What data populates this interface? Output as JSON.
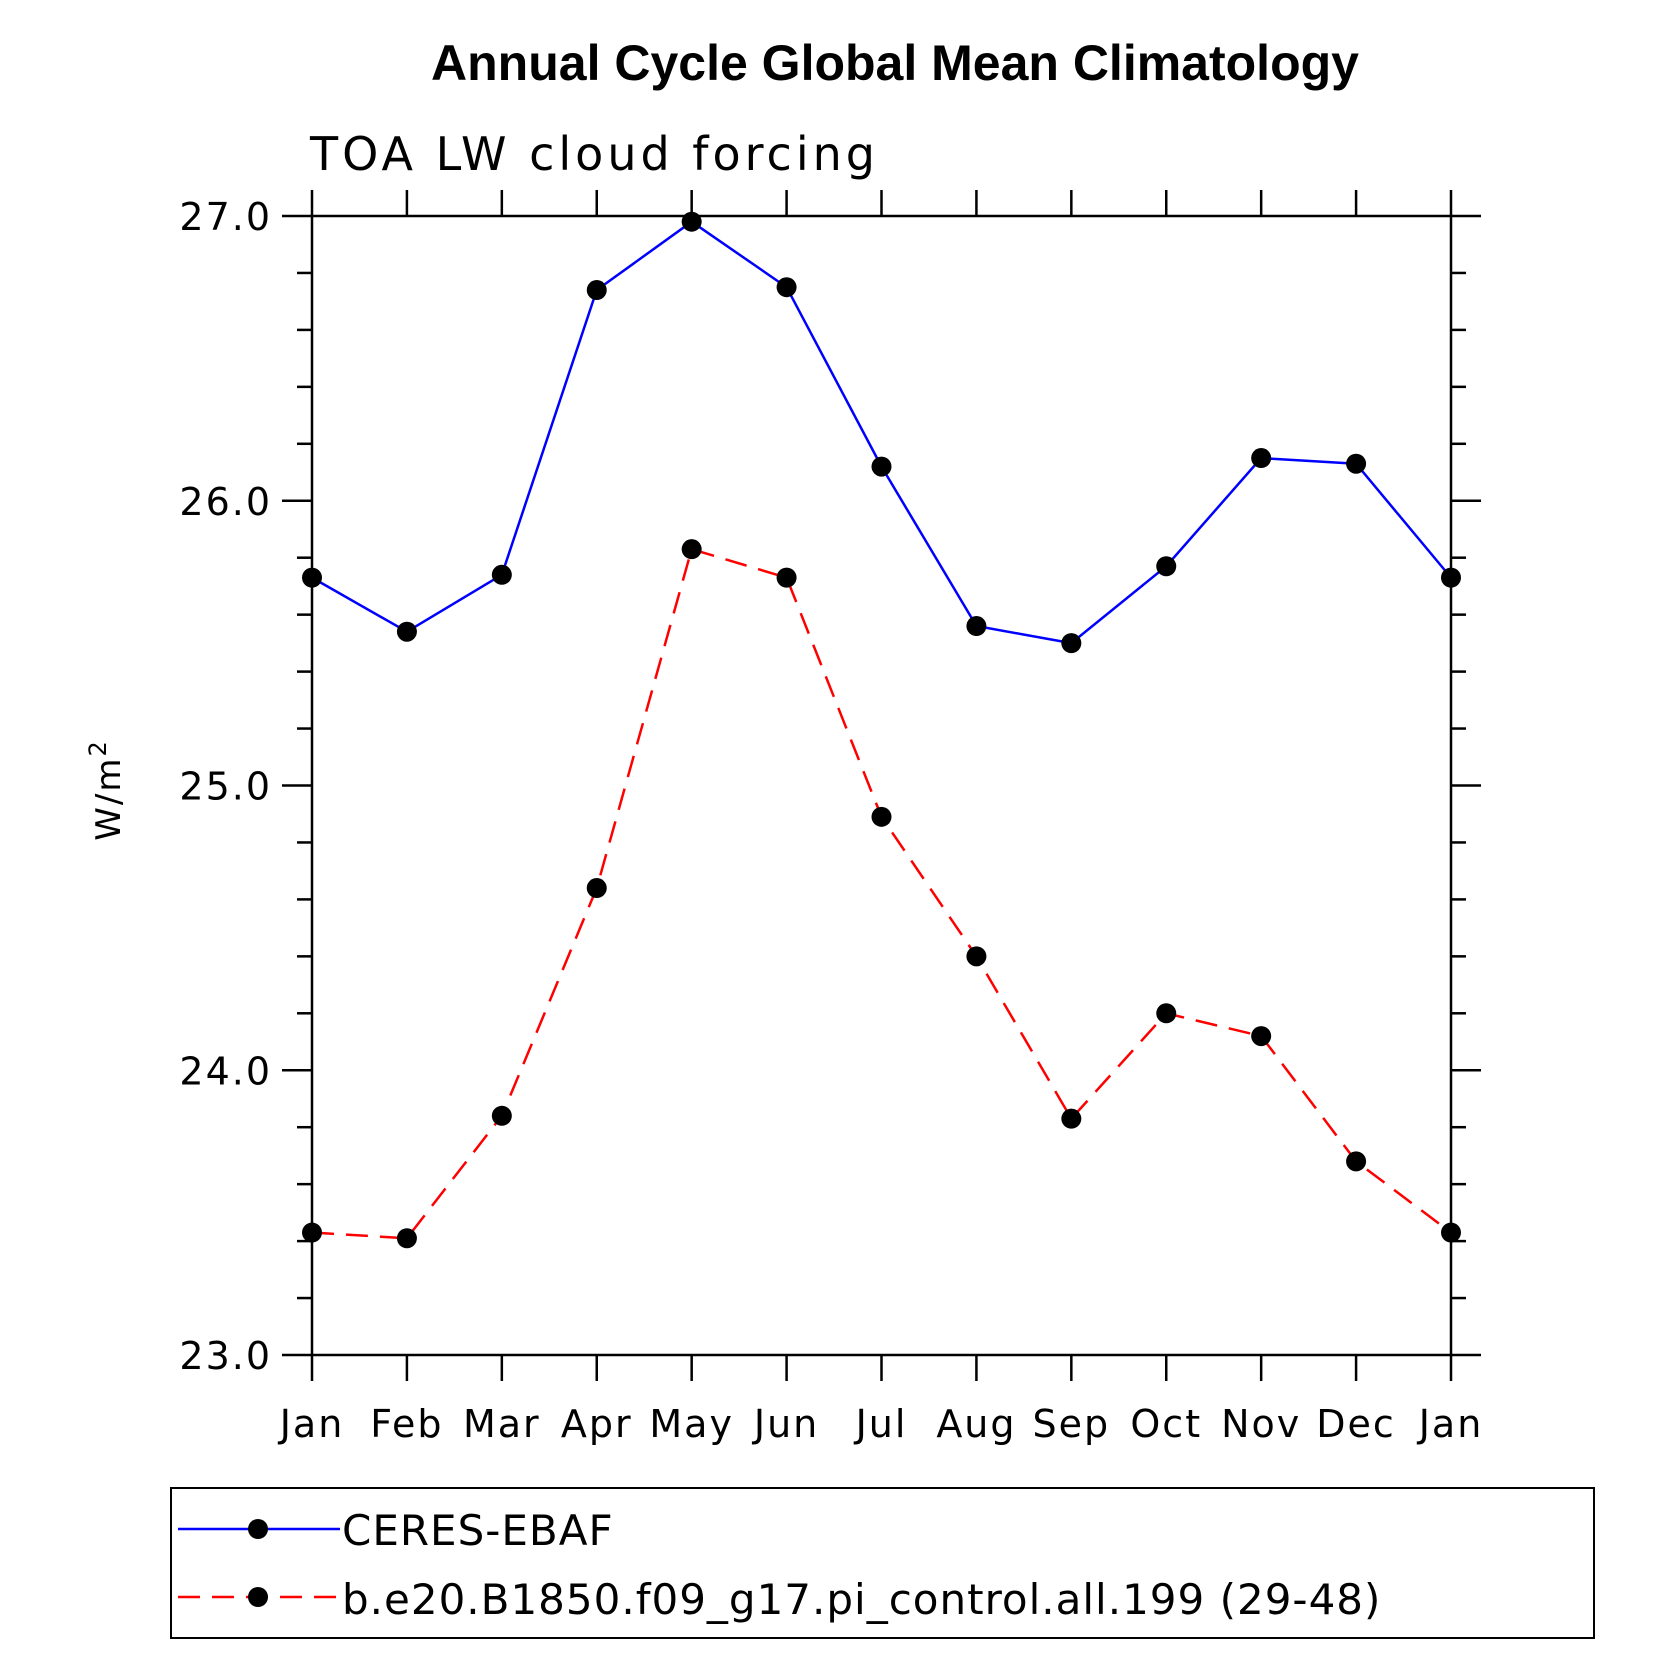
{
  "chart_data": {
    "type": "line",
    "title": "Annual Cycle Global Mean Climatology",
    "subtitle": "TOA LW cloud forcing",
    "ylabel": "W/m",
    "ylabel_superscript": "2",
    "xlabel": "",
    "categories": [
      "Jan",
      "Feb",
      "Mar",
      "Apr",
      "May",
      "Jun",
      "Jul",
      "Aug",
      "Sep",
      "Oct",
      "Nov",
      "Dec",
      "Jan"
    ],
    "ylim": [
      23.0,
      27.0
    ],
    "yticks": [
      "23.0",
      "24.0",
      "25.0",
      "26.0",
      "27.0"
    ],
    "y_minor_step": 0.2,
    "grid": false,
    "legend_position": "bottom",
    "series": [
      {
        "name": "CERES-EBAF",
        "color": "#0000ff",
        "dash": "solid",
        "values": [
          25.73,
          25.54,
          25.74,
          26.74,
          26.98,
          26.75,
          26.12,
          25.56,
          25.5,
          25.77,
          26.15,
          26.13,
          25.73
        ]
      },
      {
        "name": "b.e20.B1850.f09_g17.pi_control.all.199 (29-48)",
        "color": "#ff0000",
        "dash": "dashed",
        "values": [
          23.43,
          23.41,
          23.84,
          24.64,
          25.83,
          25.73,
          24.89,
          24.4,
          23.83,
          24.2,
          24.12,
          23.68,
          23.43
        ]
      }
    ],
    "marker_color": "#000000"
  }
}
